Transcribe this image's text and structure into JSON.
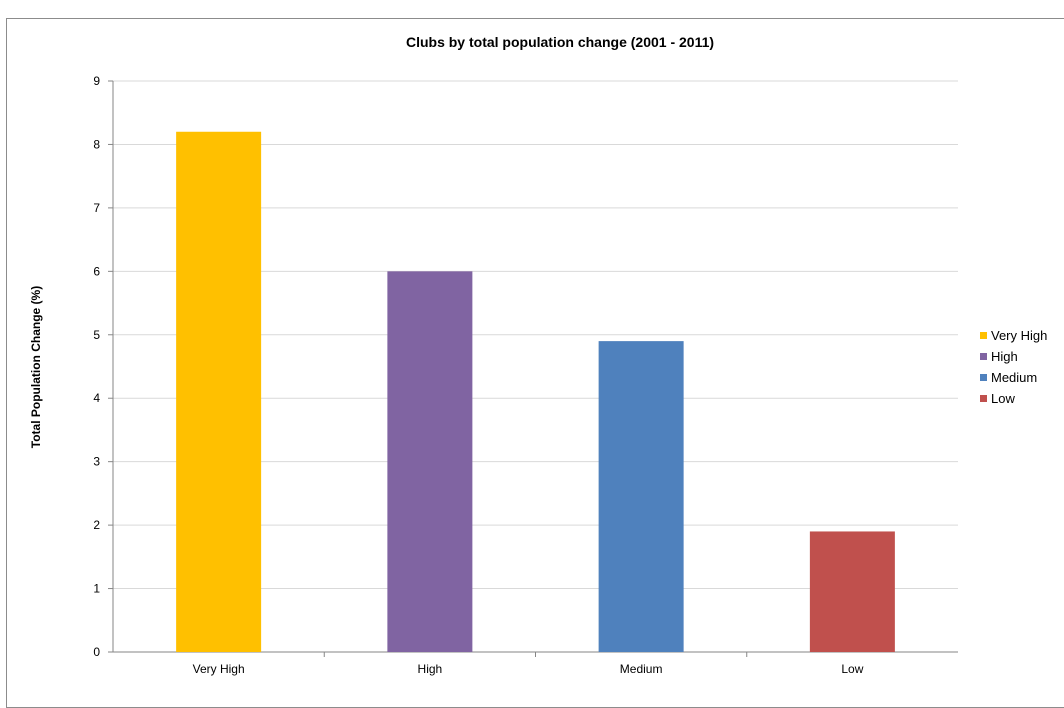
{
  "chart_data": {
    "type": "bar",
    "title": "Clubs by total population change (2001 - 2011)",
    "xlabel": "",
    "ylabel": "Total Population Change (%)",
    "ylim": [
      0,
      9
    ],
    "yticks": [
      0,
      1,
      2,
      3,
      4,
      5,
      6,
      7,
      8,
      9
    ],
    "grid": true,
    "legend_position": "right",
    "categories": [
      "Very High",
      "High",
      "Medium",
      "Low"
    ],
    "values": [
      8.2,
      6.0,
      4.9,
      1.9
    ],
    "colors": [
      "#ffc000",
      "#8064a2",
      "#4f81bd",
      "#c0504d"
    ],
    "legend": [
      "Very High",
      "High",
      "Medium",
      "Low"
    ]
  }
}
